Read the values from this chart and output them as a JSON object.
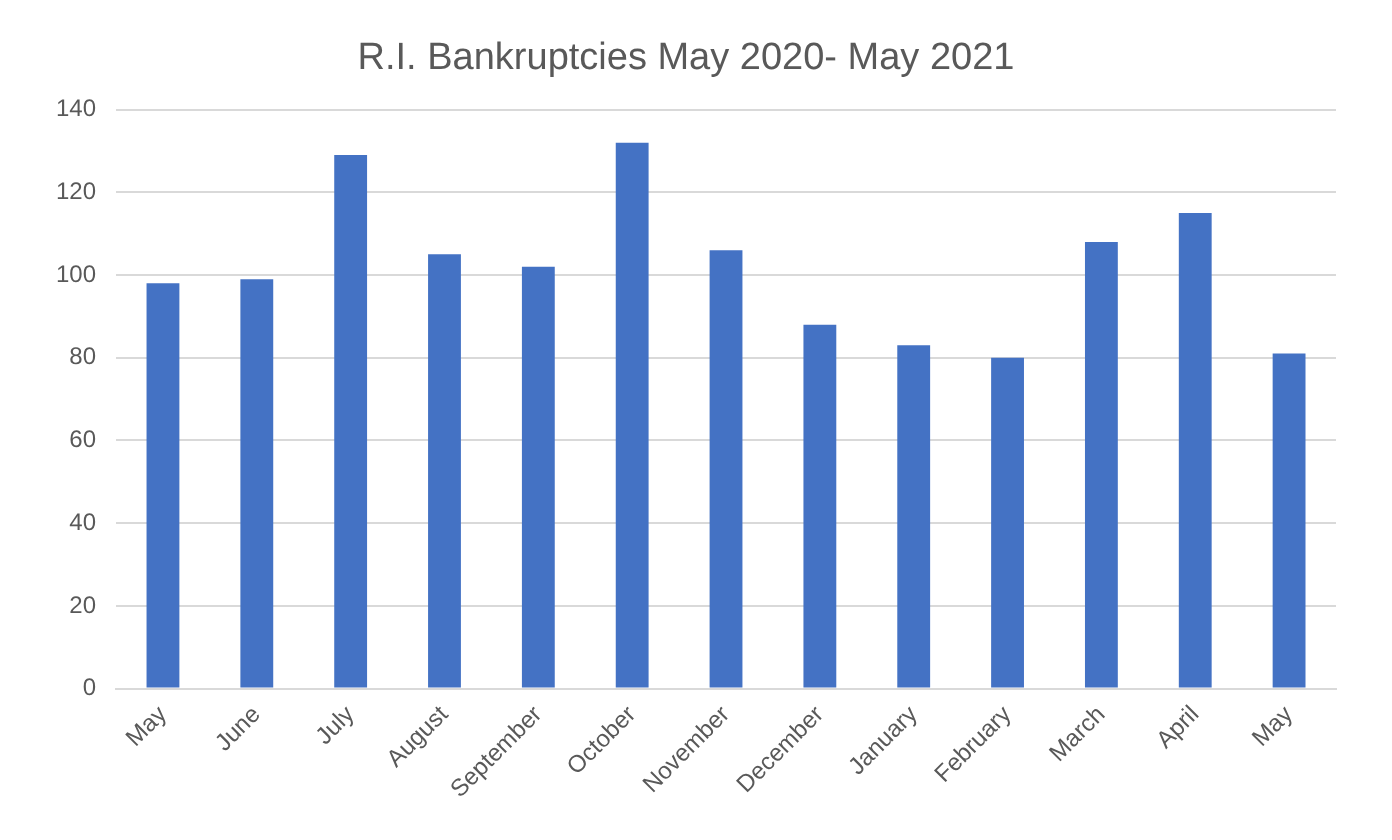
{
  "chart_data": {
    "type": "bar",
    "title": "R.I. Bankruptcies May 2020- May 2021",
    "categories": [
      "May",
      "June",
      "July",
      "August",
      "September",
      "October",
      "November",
      "December",
      "January",
      "February",
      "March",
      "April",
      "May"
    ],
    "values": [
      98,
      99,
      129,
      105,
      102,
      132,
      106,
      88,
      83,
      80,
      108,
      115,
      81
    ],
    "color": "#4472c4",
    "ylim": [
      0,
      140
    ],
    "yticks": [
      0,
      20,
      40,
      60,
      80,
      100,
      120,
      140
    ],
    "grid": "y",
    "legend": false
  }
}
